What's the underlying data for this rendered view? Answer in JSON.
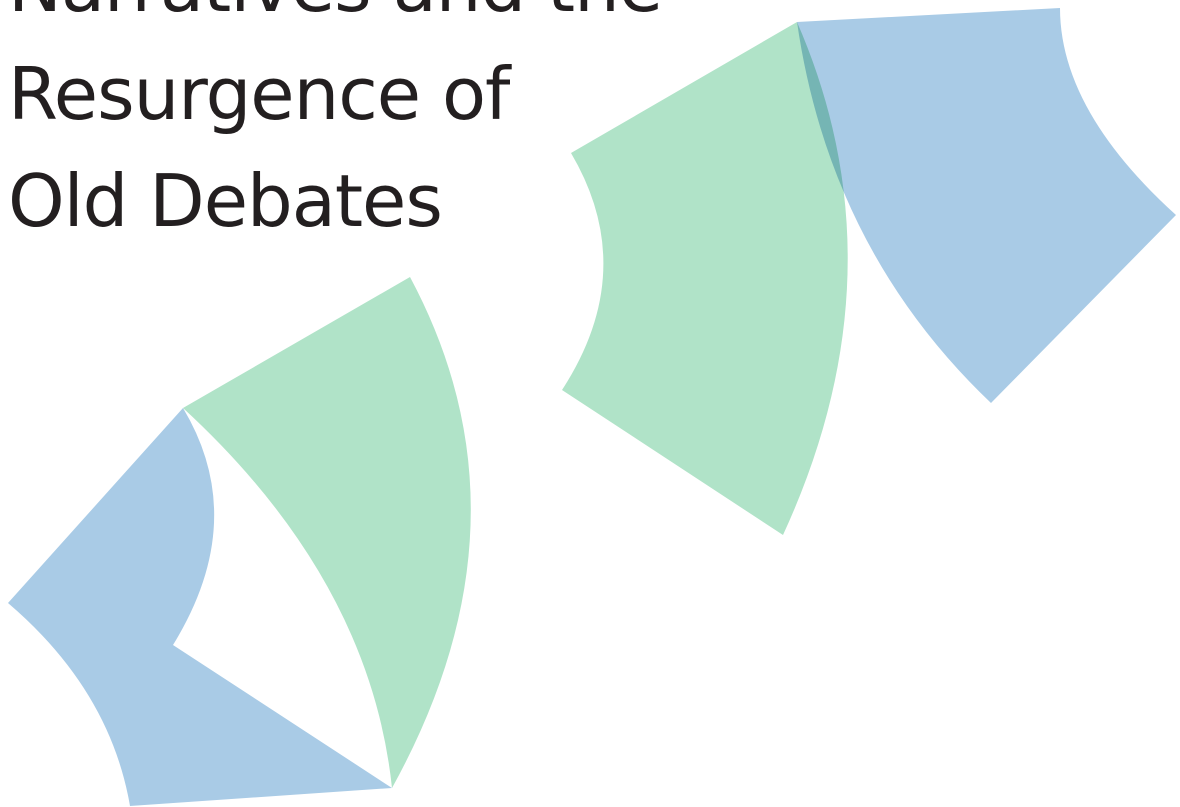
{
  "title": {
    "lines": [
      "Narratives and the",
      "Resurgence of",
      "Old Debates"
    ]
  }
}
